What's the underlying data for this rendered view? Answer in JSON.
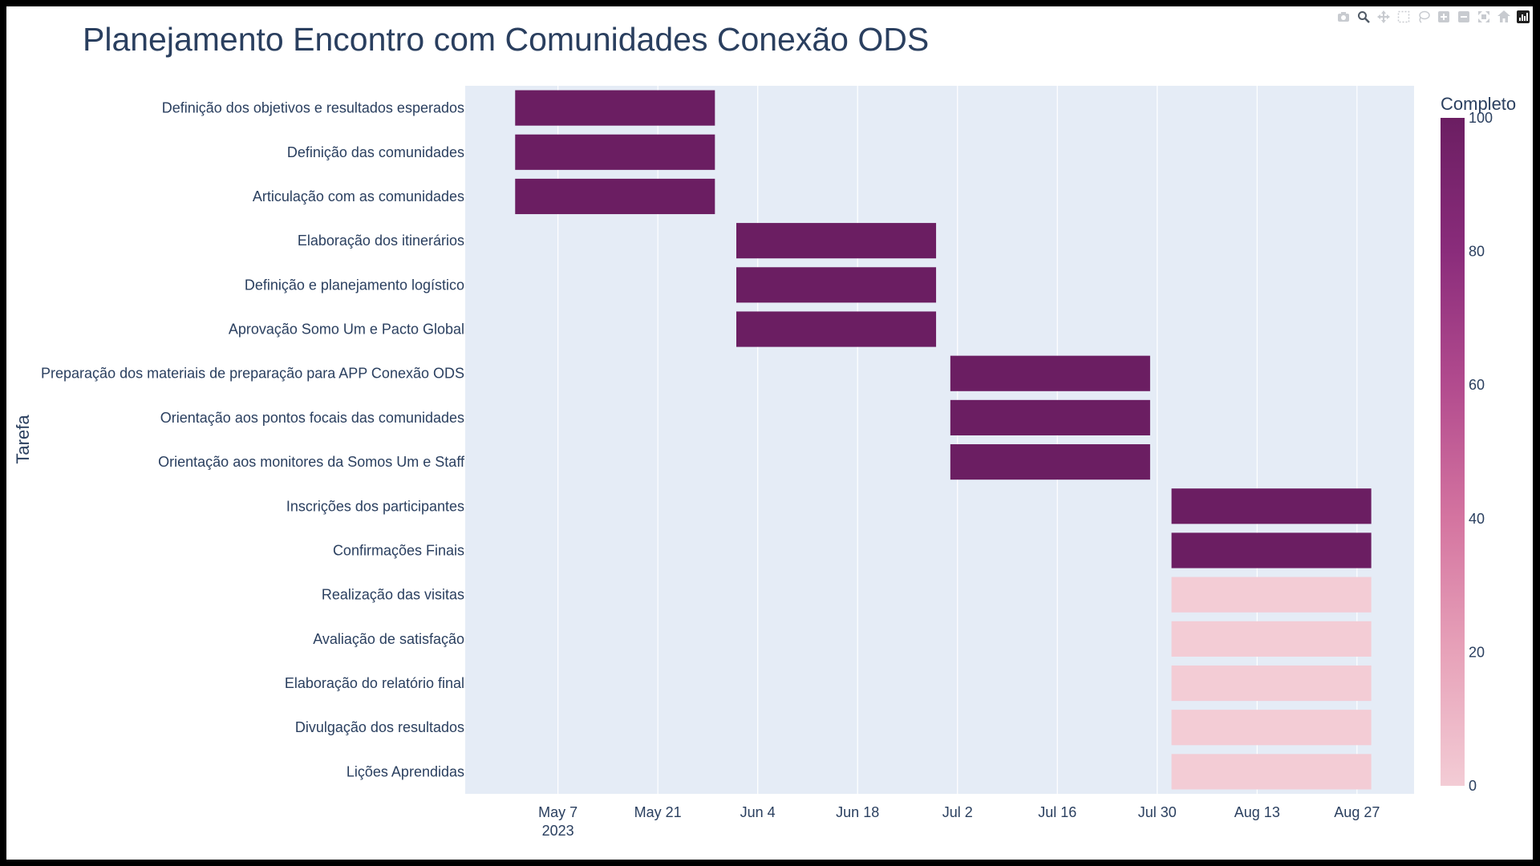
{
  "chart_data": {
    "type": "gantt",
    "title": "Planejamento Encontro com Comunidades Conexão ODS",
    "ylabel": "Tarefa",
    "xlabel": "",
    "x_ticks": [
      {
        "date": "2023-05-07",
        "label": "May 7",
        "sublabel": "2023"
      },
      {
        "date": "2023-05-21",
        "label": "May 21"
      },
      {
        "date": "2023-06-04",
        "label": "Jun 4"
      },
      {
        "date": "2023-06-18",
        "label": "Jun 18"
      },
      {
        "date": "2023-07-02",
        "label": "Jul 2"
      },
      {
        "date": "2023-07-16",
        "label": "Jul 16"
      },
      {
        "date": "2023-07-30",
        "label": "Jul 30"
      },
      {
        "date": "2023-08-13",
        "label": "Aug 13"
      },
      {
        "date": "2023-08-27",
        "label": "Aug 27"
      }
    ],
    "xlim": [
      "2023-04-24",
      "2023-09-04"
    ],
    "colorbar": {
      "title": "Completo",
      "range": [
        0,
        100
      ],
      "ticks": [
        "0",
        "20",
        "40",
        "60",
        "80",
        "100"
      ],
      "colorscale": [
        "#f3ccd5",
        "#e7a2b9",
        "#d474a0",
        "#b24b8e",
        "#8a2c7b",
        "#6b1e62"
      ]
    },
    "tasks": [
      {
        "name": "Definição dos objetivos e resultados esperados",
        "start": "2023-05-01",
        "end": "2023-05-29",
        "completo": 100
      },
      {
        "name": "Definição das comunidades",
        "start": "2023-05-01",
        "end": "2023-05-29",
        "completo": 100
      },
      {
        "name": "Articulação com as comunidades",
        "start": "2023-05-01",
        "end": "2023-05-29",
        "completo": 100
      },
      {
        "name": "Elaboração dos itinerários",
        "start": "2023-06-01",
        "end": "2023-06-29",
        "completo": 100
      },
      {
        "name": "Definição e planejamento logístico",
        "start": "2023-06-01",
        "end": "2023-06-29",
        "completo": 100
      },
      {
        "name": "Aprovação Somo Um e Pacto Global",
        "start": "2023-06-01",
        "end": "2023-06-29",
        "completo": 100
      },
      {
        "name": "Preparação dos materiais de preparação para APP Conexão ODS",
        "start": "2023-07-01",
        "end": "2023-07-29",
        "completo": 100
      },
      {
        "name": "Orientação aos pontos focais das comunidades",
        "start": "2023-07-01",
        "end": "2023-07-29",
        "completo": 100
      },
      {
        "name": "Orientação aos monitores da Somos Um e Staff",
        "start": "2023-07-01",
        "end": "2023-07-29",
        "completo": 100
      },
      {
        "name": "Inscrições dos participantes",
        "start": "2023-08-01",
        "end": "2023-08-29",
        "completo": 100
      },
      {
        "name": "Confirmações Finais",
        "start": "2023-08-01",
        "end": "2023-08-29",
        "completo": 100
      },
      {
        "name": "Realização das visitas",
        "start": "2023-08-01",
        "end": "2023-08-29",
        "completo": 0
      },
      {
        "name": "Avaliação de satisfação",
        "start": "2023-08-01",
        "end": "2023-08-29",
        "completo": 0
      },
      {
        "name": "Elaboração do relatório final",
        "start": "2023-08-01",
        "end": "2023-08-29",
        "completo": 0
      },
      {
        "name": "Divulgação dos resultados",
        "start": "2023-08-01",
        "end": "2023-08-29",
        "completo": 0
      },
      {
        "name": "Lições Aprendidas",
        "start": "2023-08-01",
        "end": "2023-08-29",
        "completo": 0
      }
    ]
  },
  "modebar": {
    "icons": [
      "camera-icon",
      "zoom-icon",
      "pan-icon",
      "box-select-icon",
      "lasso-select-icon",
      "zoom-in-icon",
      "zoom-out-icon",
      "autoscale-icon",
      "reset-axes-icon",
      "plotly-logo-icon"
    ]
  }
}
